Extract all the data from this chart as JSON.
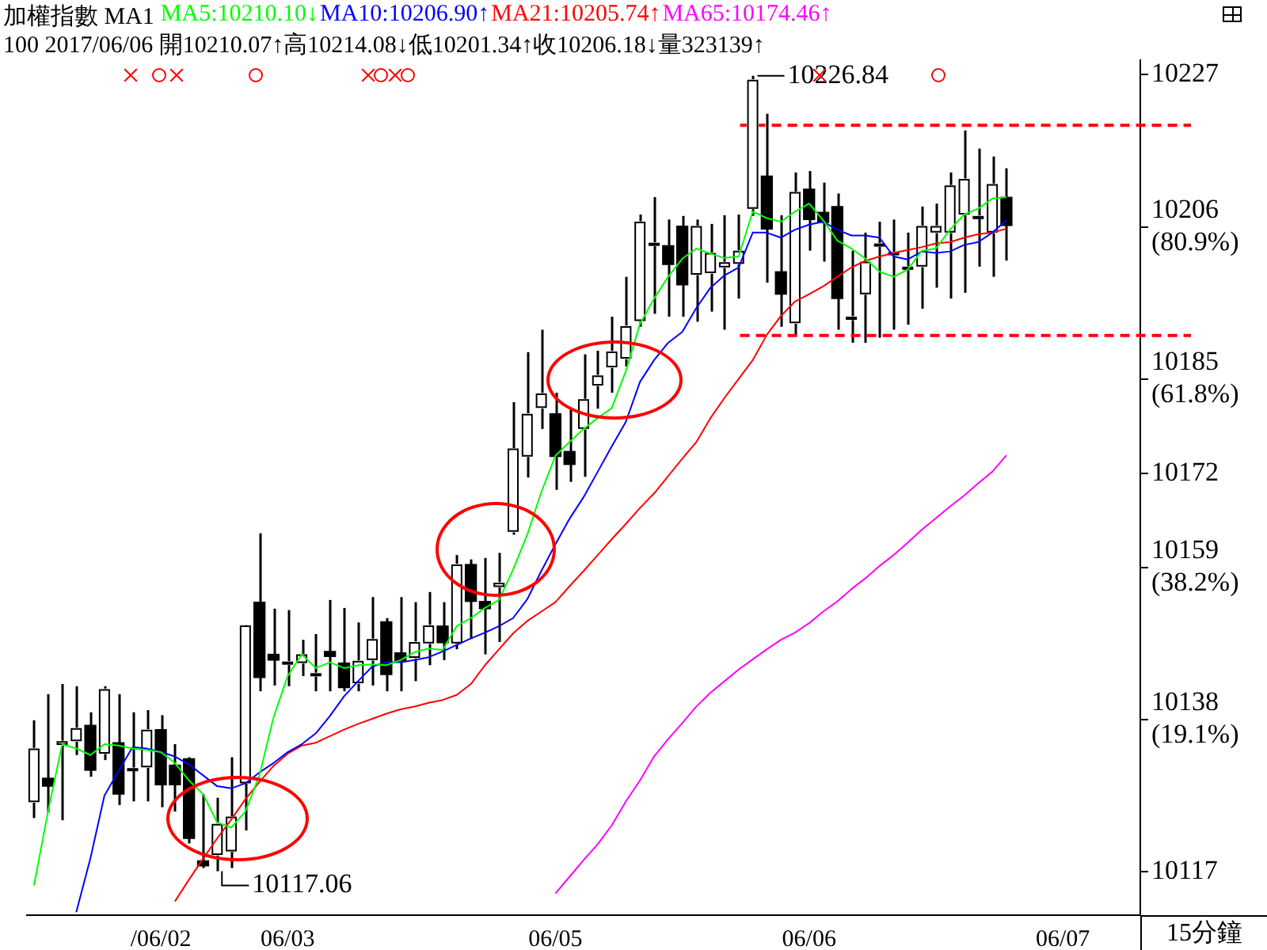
{
  "chart_data": {
    "type": "candlestick",
    "title": "加權指數 MA1",
    "subtitle": "100 2017/06/06 開10210.07↑高10214.08↓低10201.34↑收10206.18↓量323139↑",
    "categories": [
      null,
      null,
      null,
      null,
      null,
      null,
      null,
      null,
      null,
      "/06/02",
      null,
      null,
      null,
      null,
      null,
      null,
      null,
      null,
      "06/03",
      null,
      null,
      null,
      null,
      null,
      null,
      null,
      null,
      null,
      null,
      null,
      null,
      null,
      null,
      null,
      null,
      null,
      null,
      "06/05",
      null,
      null,
      null,
      null,
      null,
      null,
      null,
      null,
      null,
      null,
      null,
      null,
      null,
      null,
      null,
      null,
      null,
      "06/06",
      null,
      null,
      null,
      null,
      null,
      null,
      null,
      null,
      null,
      null,
      null,
      null,
      null,
      null,
      null,
      null,
      null,
      "06/07",
      null,
      null,
      null,
      null,
      null
    ],
    "color": "#000000",
    "colors": [
      "#ffffff",
      "#000000",
      "#ffffff",
      "#ffffff",
      "#000000",
      "#ffffff",
      "#000000",
      "#ffffff",
      "#ffffff",
      "#000000",
      "#000000",
      "#000000",
      "#000000",
      "#ffffff",
      "#ffffff",
      "#ffffff",
      "#000000",
      "#000000",
      "#ffffff",
      "#ffffff",
      "#ffffff",
      "#000000",
      "#000000",
      "#ffffff",
      "#ffffff",
      "#000000",
      "#000000",
      "#ffffff",
      "#ffffff",
      "#000000",
      "#ffffff",
      "#000000",
      "#000000",
      "#ffffff",
      "#ffffff",
      "#ffffff",
      "#ffffff",
      "#000000",
      "#000000",
      "#ffffff",
      "#ffffff",
      "#ffffff",
      "#ffffff",
      "#ffffff",
      "#ffffff",
      "#000000",
      "#000000",
      "#ffffff",
      "#ffffff",
      "#ffffff",
      "#ffffff",
      "#ffffff",
      "#000000",
      "#000000",
      "#ffffff",
      "#000000",
      "#000000",
      "#000000",
      "#ffffff",
      "#ffffff",
      "#ffffff",
      "#ffffff",
      "#ffffff",
      "#ffffff",
      "#ffffff",
      "#ffffff",
      "#ffffff",
      "#ffffff",
      "#ffffff",
      "#000000",
      null,
      null,
      null,
      null,
      null,
      null,
      null,
      null,
      null
    ],
    "ohlc": [
      [
        10126.6,
        10137.9,
        10124.4,
        10134.0
      ],
      [
        10129.9,
        10141.5,
        10125.2,
        10128.8
      ],
      [
        10134.5,
        10142.9,
        10124.1,
        10135.0
      ],
      [
        10135.0,
        10142.6,
        10133.1,
        10136.8
      ],
      [
        10137.2,
        10139.0,
        10130.1,
        10131.0
      ],
      [
        10133.3,
        10142.6,
        10132.4,
        10142.2
      ],
      [
        10134.8,
        10141.5,
        10126.2,
        10127.7
      ],
      [
        10131.0,
        10139.0,
        10126.7,
        10131.3
      ],
      [
        10131.4,
        10139.3,
        10126.7,
        10136.6
      ],
      [
        10136.6,
        10138.6,
        10125.9,
        10129.0
      ],
      [
        10131.7,
        10134.6,
        10125.3,
        10129.0
      ],
      [
        10132.6,
        10132.8,
        10120.9,
        10121.6
      ],
      [
        10118.5,
        10127.7,
        10117.5,
        10117.8
      ],
      [
        10119.3,
        10127.2,
        10117.06,
        10123.6
      ],
      [
        10119.8,
        10132.8,
        10117.5,
        10124.6
      ],
      [
        10129.2,
        10151.1,
        10122.7,
        10151.0
      ],
      [
        10154.2,
        10163.7,
        10141.9,
        10143.8
      ],
      [
        10147.0,
        10153.3,
        10142.7,
        10146.2
      ],
      [
        10145.6,
        10153.1,
        10142.6,
        10146.0
      ],
      [
        10145.8,
        10149.0,
        10144.0,
        10147.0
      ],
      [
        10144.0,
        10149.8,
        10141.9,
        10144.4
      ],
      [
        10147.4,
        10154.5,
        10141.9,
        10146.7
      ],
      [
        10145.8,
        10153.4,
        10141.9,
        10142.4
      ],
      [
        10143.0,
        10151.4,
        10141.9,
        10146.1
      ],
      [
        10146.2,
        10154.9,
        10142.7,
        10149.1
      ],
      [
        10151.5,
        10152.0,
        10141.9,
        10144.2
      ],
      [
        10147.2,
        10154.9,
        10141.9,
        10146.0
      ],
      [
        10146.5,
        10154.2,
        10143.3,
        10148.7
      ],
      [
        10148.5,
        10155.6,
        10145.5,
        10151.0
      ],
      [
        10150.9,
        10154.2,
        10146.2,
        10148.6
      ],
      [
        10148.5,
        10160.7,
        10147.7,
        10159.4
      ],
      [
        10159.4,
        10160.1,
        10149.1,
        10154.3
      ],
      [
        10154.3,
        10160.3,
        10147.0,
        10153.3
      ],
      [
        10156.3,
        10161.0,
        10148.7,
        10156.9
      ],
      [
        10163.9,
        10181.8,
        10163.5,
        10175.4
      ],
      [
        10174.3,
        10188.7,
        10171.4,
        10180.2
      ],
      [
        10181.0,
        10191.8,
        10178.1,
        10183.0
      ],
      [
        10180.2,
        10183.1,
        10169.7,
        10174.3
      ],
      [
        10175.0,
        10180.9,
        10170.8,
        10173.2
      ],
      [
        10178.1,
        10188.4,
        10171.5,
        10182.2
      ],
      [
        10184.1,
        10188.9,
        10180.9,
        10185.5
      ],
      [
        10186.6,
        10193.6,
        10183.1,
        10188.8
      ],
      [
        10187.8,
        10199.1,
        10186.7,
        10192.3
      ],
      [
        10193.0,
        10207.7,
        10192.2,
        10206.7
      ],
      [
        10203.4,
        10210.1,
        10194.0,
        10203.8
      ],
      [
        10203.4,
        10207.0,
        10193.6,
        10200.8
      ],
      [
        10206.1,
        10207.5,
        10193.6,
        10198.0
      ],
      [
        10199.4,
        10207.0,
        10192.9,
        10206.1
      ],
      [
        10199.6,
        10206.4,
        10194.3,
        10202.4
      ],
      [
        10200.4,
        10207.6,
        10191.8,
        10201.1
      ],
      [
        10200.9,
        10207.7,
        10196.1,
        10202.7
      ],
      [
        10208.5,
        10226.84,
        10207.5,
        10226.3
      ],
      [
        10213.0,
        10221.6,
        10198.3,
        10205.7
      ],
      [
        10199.8,
        10207.6,
        10192.2,
        10196.7
      ],
      [
        10192.7,
        10213.5,
        10191.1,
        10210.8
      ],
      [
        10211.2,
        10213.7,
        10202.7,
        10207.0
      ],
      [
        10208.0,
        10212.1,
        10201.2,
        10206.6
      ],
      [
        10208.8,
        10210.6,
        10191.8,
        10196.1
      ],
      [
        10193.2,
        10202.7,
        10190.0,
        10193.6
      ],
      [
        10196.7,
        10205.2,
        10190.0,
        10201.2
      ],
      [
        10203.3,
        10206.7,
        10190.7,
        10203.7
      ],
      [
        10202.1,
        10207.0,
        10191.8,
        10202.5
      ],
      [
        10200.1,
        10205.2,
        10192.5,
        10200.5
      ],
      [
        10200.5,
        10208.8,
        10194.7,
        10206.1
      ],
      [
        10205.2,
        10209.2,
        10197.6,
        10206.1
      ],
      [
        10205.2,
        10213.5,
        10196.1,
        10211.7
      ],
      [
        10207.7,
        10219.3,
        10196.9,
        10212.6
      ],
      [
        10207.3,
        10216.8,
        10200.5,
        10207.5
      ],
      [
        10205.2,
        10215.7,
        10199.1,
        10211.9
      ],
      [
        10210.07,
        10214.08,
        10201.34,
        10206.18
      ],
      null,
      null,
      null,
      null,
      null,
      null,
      null,
      null,
      null
    ],
    "series": [
      {
        "name": "MA5:10210.10↓",
        "type": "line",
        "color": "#00ff00",
        "values": [
          10115.1,
          10125.3,
          10134.6,
          10134.0,
          10133.1,
          10134.6,
          10134.4,
          10134.0,
          10133.8,
          10133.5,
          10132.0,
          10129.6,
          10127.7,
          10123.8,
          10123.1,
          10125.3,
          10130.3,
          10138.3,
          10144.0,
          10147.0,
          10145.1,
          10145.9,
          10145.1,
          10145.5,
          10145.6,
          10145.5,
          10146.2,
          10147.3,
          10147.8,
          10147.6,
          10150.9,
          10152.0,
          10153.4,
          10154.5,
          10158.7,
          10163.5,
          10169.4,
          10174.4,
          10176.3,
          10178.1,
          10179.6,
          10181.0,
          10186.1,
          10192.6,
          10196.1,
          10199.1,
          10201.6,
          10203.0,
          10202.3,
          10201.7,
          10201.9,
          10208.1,
          10207.2,
          10206.7,
          10208.1,
          10209.2,
          10206.9,
          10204.1,
          10203.0,
          10201.6,
          10199.8,
          10199.1,
          10200.1,
          10202.7,
          10203.0,
          10205.6,
          10207.7,
          10208.5,
          10209.9,
          10210.1,
          null,
          null,
          null,
          null,
          null,
          null,
          null,
          null,
          null
        ]
      },
      {
        "name": "MA10:10206.90↑",
        "type": "line",
        "color": "#0000ff",
        "values": [
          null,
          null,
          null,
          10111.4,
          10118.8,
          10127.5,
          10130.9,
          10134.2,
          10134.0,
          10133.5,
          10132.9,
          10131.8,
          10130.3,
          10128.8,
          10128.5,
          10129.2,
          10130.7,
          10132.0,
          10133.5,
          10134.6,
          10136.1,
          10138.5,
          10141.2,
          10143.3,
          10145.3,
          10145.9,
          10145.9,
          10146.2,
          10146.6,
          10147.4,
          10148.3,
          10149.2,
          10150.0,
          10150.9,
          10152.0,
          10154.6,
          10158.5,
          10162.2,
          10165.7,
          10168.7,
          10172.2,
          10175.7,
          10179.1,
          10184.6,
          10187.6,
          10190.0,
          10191.5,
          10194.8,
          10197.6,
          10199.3,
          10200.4,
          10205.2,
          10205.2,
          10204.5,
          10205.6,
          10206.3,
          10206.7,
          10205.6,
          10204.8,
          10204.8,
          10204.5,
          10201.9,
          10201.5,
          10202.6,
          10202.4,
          10202.6,
          10203.5,
          10203.9,
          10205.2,
          10206.9,
          null,
          null,
          null,
          null,
          null,
          null,
          null,
          null,
          null
        ]
      },
      {
        "name": "MA21:10205.74↑",
        "type": "line",
        "color": "#ff0000",
        "values": [
          null,
          null,
          null,
          null,
          null,
          null,
          null,
          null,
          null,
          null,
          10112.9,
          10115.9,
          10118.8,
          10121.6,
          10124.2,
          10127.0,
          10129.4,
          10131.6,
          10133.3,
          10134.4,
          10134.8,
          10135.7,
          10136.6,
          10137.4,
          10138.1,
          10138.8,
          10139.4,
          10139.8,
          10140.3,
          10140.7,
          10141.4,
          10142.9,
          10145.5,
          10147.7,
          10149.9,
          10151.6,
          10152.9,
          10154.2,
          10156.4,
          10158.5,
          10160.7,
          10162.9,
          10165.0,
          10167.2,
          10169.2,
          10171.6,
          10174.0,
          10176.3,
          10179.6,
          10182.4,
          10185.0,
          10187.6,
          10191.1,
          10193.7,
          10195.7,
          10196.7,
          10197.8,
          10199.1,
          10200.4,
          10201.3,
          10201.9,
          10202.4,
          10202.8,
          10203.2,
          10203.7,
          10203.9,
          10204.5,
          10205.0,
          10205.2,
          10205.74,
          null,
          null,
          null,
          null,
          null,
          null,
          null,
          null,
          null
        ]
      },
      {
        "name": "MA65:10174.46↑",
        "type": "line",
        "color": "#ff00ff",
        "values": [
          null,
          null,
          null,
          null,
          null,
          null,
          null,
          null,
          null,
          null,
          null,
          null,
          null,
          null,
          null,
          null,
          null,
          null,
          null,
          null,
          null,
          null,
          null,
          null,
          null,
          null,
          null,
          null,
          null,
          null,
          null,
          null,
          null,
          null,
          null,
          null,
          null,
          10114.0,
          10116.3,
          10118.6,
          10120.8,
          10123.4,
          10126.7,
          10129.6,
          10132.9,
          10135.3,
          10137.5,
          10139.8,
          10141.7,
          10143.3,
          10144.9,
          10146.3,
          10147.7,
          10149.0,
          10150.0,
          10151.3,
          10152.9,
          10154.3,
          10156.0,
          10157.5,
          10159.2,
          10160.7,
          10162.4,
          10164.2,
          10165.8,
          10167.4,
          10168.9,
          10170.6,
          10172.2,
          10174.46,
          null,
          null,
          null,
          null,
          null,
          null,
          null,
          null,
          null
        ]
      }
    ],
    "ylim": [
      10111,
      10229
    ],
    "yticks": [
      10227,
      {
        "value": 10206,
        "label": "10206 (80.9%)"
      },
      {
        "value": 10185,
        "label": "10185 (61.8%)"
      },
      10172,
      {
        "value": 10159,
        "label": "10159 (38.2%)"
      },
      {
        "value": 10138,
        "label": "10138 (19.1%)"
      },
      10117
    ],
    "ref_lines": [
      {
        "axis": "y",
        "value": 10220,
        "color": "#ff0000",
        "line_style": "dashed"
      },
      {
        "axis": "y",
        "value": 10191,
        "color": "#ff0000",
        "line_style": "dashed"
      }
    ],
    "annotations": [
      "10226.84",
      "10117.06",
      "15分鐘"
    ],
    "legend": "top left"
  }
}
